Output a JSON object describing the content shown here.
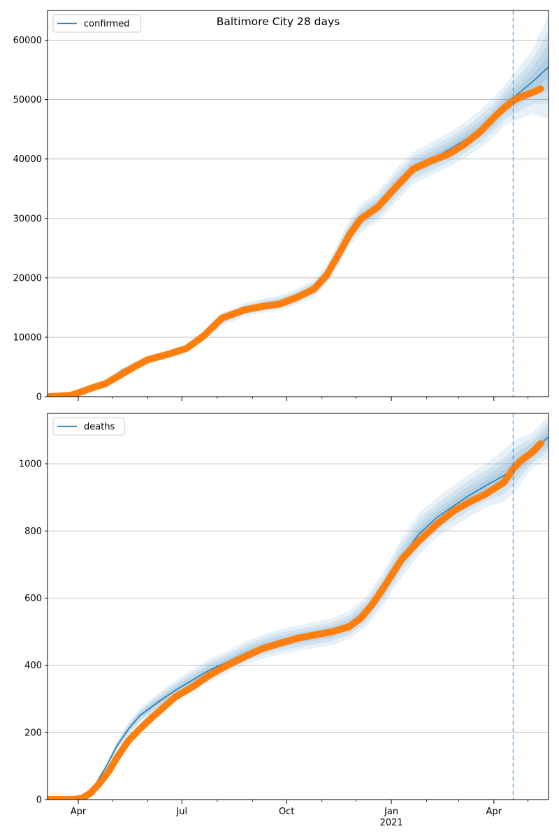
{
  "figure_title": "Baltimore City 28 days",
  "colors": {
    "model_line": "#1f77b4",
    "band": "#1f77b4",
    "observed": "#ff7f0e",
    "grid": "#b0b0b0",
    "forecast_line": "#1f77b4"
  },
  "x_axis": {
    "ticks": [
      {
        "date": "2020-04-01",
        "label": "Apr",
        "sublabel": ""
      },
      {
        "date": "2020-07-01",
        "label": "Jul",
        "sublabel": ""
      },
      {
        "date": "2020-10-01",
        "label": "Oct",
        "sublabel": ""
      },
      {
        "date": "2021-01-01",
        "label": "Jan",
        "sublabel": "2021"
      },
      {
        "date": "2021-04-01",
        "label": "Apr",
        "sublabel": ""
      }
    ],
    "minor_ticks": [
      "2020-05-01",
      "2020-06-01",
      "2020-08-01",
      "2020-09-01",
      "2020-11-01",
      "2020-12-01",
      "2021-02-01",
      "2021-03-01",
      "2021-05-01"
    ],
    "range": [
      "2020-03-05",
      "2021-05-19"
    ],
    "forecast_start": "2021-04-18"
  },
  "chart_data": [
    {
      "type": "line",
      "series_name": "confirmed",
      "legend": "confirmed",
      "legend_position": "top-left",
      "ylim": [
        0,
        65000
      ],
      "yticks": [
        0,
        10000,
        20000,
        30000,
        40000,
        50000,
        60000
      ],
      "ytick_labels": [
        "0",
        "10000",
        "20000",
        "30000",
        "40000",
        "50000",
        "60000"
      ],
      "grid": "horizontal",
      "model": {
        "x": [
          "2020-03-05",
          "2020-03-25",
          "2020-04-10",
          "2020-04-25",
          "2020-05-10",
          "2020-06-01",
          "2020-06-20",
          "2020-07-05",
          "2020-07-20",
          "2020-08-05",
          "2020-08-25",
          "2020-09-10",
          "2020-09-25",
          "2020-10-10",
          "2020-10-25",
          "2020-11-05",
          "2020-11-15",
          "2020-11-25",
          "2020-12-05",
          "2020-12-20",
          "2021-01-05",
          "2021-01-20",
          "2021-02-05",
          "2021-02-20",
          "2021-03-05",
          "2021-03-20",
          "2021-04-01",
          "2021-04-10",
          "2021-04-18",
          "2021-05-05",
          "2021-05-19"
        ],
        "y": [
          0,
          200,
          1300,
          2600,
          4500,
          6400,
          7300,
          8200,
          10200,
          13000,
          14600,
          15300,
          15800,
          16800,
          18200,
          20500,
          24000,
          27500,
          30000,
          32000,
          35500,
          38500,
          40000,
          41500,
          43000,
          45000,
          47000,
          49000,
          50300,
          53000,
          55500
        ],
        "band_rel": [
          0.0,
          0.05,
          0.06,
          0.07,
          0.08,
          0.08,
          0.08,
          0.08,
          0.08,
          0.08,
          0.08,
          0.08,
          0.08,
          0.08,
          0.08,
          0.08,
          0.08,
          0.08,
          0.08,
          0.08,
          0.08,
          0.07,
          0.07,
          0.07,
          0.07,
          0.07,
          0.07,
          0.07,
          0.08,
          0.1,
          0.16
        ]
      },
      "observed": {
        "x": [
          "2020-03-05",
          "2020-03-25",
          "2020-04-05",
          "2020-04-15",
          "2020-04-25",
          "2020-05-05",
          "2020-05-20",
          "2020-06-01",
          "2020-06-20",
          "2020-07-05",
          "2020-07-20",
          "2020-08-05",
          "2020-08-25",
          "2020-09-10",
          "2020-09-25",
          "2020-10-10",
          "2020-10-25",
          "2020-11-05",
          "2020-11-15",
          "2020-11-25",
          "2020-12-05",
          "2020-12-20",
          "2021-01-05",
          "2021-01-20",
          "2021-02-05",
          "2021-02-20",
          "2021-03-05",
          "2021-03-20",
          "2021-04-01",
          "2021-04-10",
          "2021-04-18",
          "2021-04-25",
          "2021-05-05",
          "2021-05-12"
        ],
        "y": [
          0,
          200,
          900,
          1600,
          2200,
          3300,
          5000,
          6200,
          7200,
          8100,
          10200,
          13200,
          14600,
          15200,
          15600,
          16700,
          18100,
          20400,
          23700,
          27200,
          29900,
          31900,
          35300,
          38300,
          39700,
          40800,
          42300,
          44600,
          47000,
          48600,
          49800,
          50500,
          51200,
          51800
        ]
      }
    },
    {
      "type": "line",
      "series_name": "deaths",
      "legend": "deaths",
      "legend_position": "top-left",
      "ylim": [
        0,
        1150
      ],
      "yticks": [
        0,
        200,
        400,
        600,
        800,
        1000
      ],
      "ytick_labels": [
        "0",
        "200",
        "400",
        "600",
        "800",
        "1000"
      ],
      "grid": "horizontal",
      "model": {
        "x": [
          "2020-03-05",
          "2020-03-25",
          "2020-04-05",
          "2020-04-15",
          "2020-04-25",
          "2020-05-05",
          "2020-05-15",
          "2020-05-25",
          "2020-06-10",
          "2020-06-25",
          "2020-07-10",
          "2020-07-25",
          "2020-08-10",
          "2020-08-25",
          "2020-09-10",
          "2020-09-25",
          "2020-10-10",
          "2020-10-25",
          "2020-11-10",
          "2020-11-25",
          "2020-12-10",
          "2020-12-25",
          "2021-01-10",
          "2021-01-25",
          "2021-02-10",
          "2021-02-25",
          "2021-03-10",
          "2021-03-25",
          "2021-04-10",
          "2021-04-18",
          "2021-05-05",
          "2021-05-19"
        ],
        "y": [
          0,
          0,
          10,
          40,
          95,
          160,
          210,
          250,
          290,
          325,
          355,
          385,
          410,
          435,
          455,
          470,
          480,
          490,
          500,
          520,
          560,
          630,
          720,
          790,
          840,
          875,
          905,
          935,
          965,
          990,
          1040,
          1080
        ],
        "band_rel": [
          0.0,
          0.0,
          0.2,
          0.12,
          0.1,
          0.09,
          0.09,
          0.09,
          0.09,
          0.09,
          0.09,
          0.09,
          0.08,
          0.08,
          0.08,
          0.08,
          0.08,
          0.08,
          0.08,
          0.08,
          0.08,
          0.08,
          0.08,
          0.08,
          0.07,
          0.07,
          0.07,
          0.07,
          0.08,
          0.08,
          0.05,
          0.06
        ]
      },
      "observed": {
        "x": [
          "2020-03-05",
          "2020-03-28",
          "2020-04-05",
          "2020-04-12",
          "2020-04-20",
          "2020-04-28",
          "2020-05-05",
          "2020-05-15",
          "2020-05-25",
          "2020-06-05",
          "2020-06-15",
          "2020-06-25",
          "2020-07-10",
          "2020-07-25",
          "2020-08-10",
          "2020-08-25",
          "2020-09-10",
          "2020-09-25",
          "2020-10-10",
          "2020-10-25",
          "2020-11-10",
          "2020-11-25",
          "2020-12-05",
          "2020-12-15",
          "2020-12-25",
          "2021-01-10",
          "2021-01-25",
          "2021-02-10",
          "2021-02-25",
          "2021-03-10",
          "2021-03-25",
          "2021-04-10",
          "2021-04-18",
          "2021-04-25",
          "2021-05-05",
          "2021-05-12"
        ],
        "y": [
          0,
          0,
          5,
          20,
          50,
          85,
          125,
          175,
          210,
          245,
          275,
          305,
          335,
          370,
          400,
          425,
          450,
          465,
          480,
          490,
          500,
          515,
          540,
          580,
          630,
          715,
          770,
          820,
          860,
          885,
          910,
          945,
          985,
          1010,
          1035,
          1060
        ]
      }
    }
  ]
}
